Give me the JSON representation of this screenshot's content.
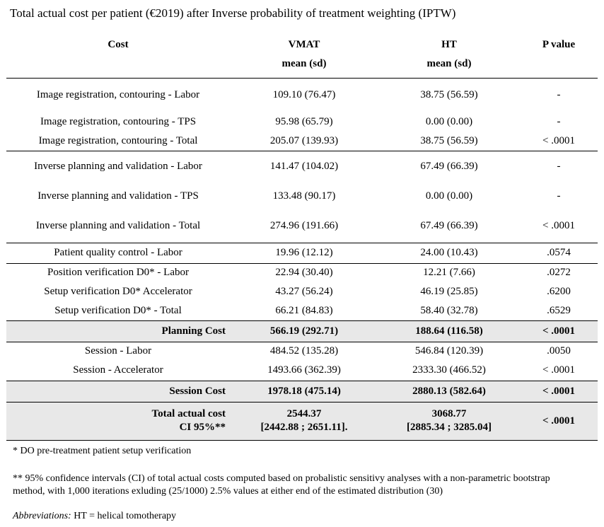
{
  "title": "Total actual cost per patient (€2019) after Inverse probability of treatment weighting (IPTW)",
  "headers": {
    "cost": "Cost",
    "vmat": "VMAT",
    "vmat_sub": "mean (sd)",
    "ht": "HT",
    "ht_sub": "mean (sd)",
    "p": "P value"
  },
  "rows": [
    {
      "cost": "Image registration, contouring - Labor",
      "vmat": "109.10 (76.47)",
      "ht": "38.75 (56.59)",
      "p": "-"
    },
    {
      "cost": "Image registration, contouring - TPS",
      "vmat": "95.98 (65.79)",
      "ht": "0.00 (0.00)",
      "p": "-"
    },
    {
      "cost": "Image registration, contouring - Total",
      "vmat": "205.07 (139.93)",
      "ht": "38.75 (56.59)",
      "p": "< .0001"
    },
    {
      "cost": "Inverse planning and validation - Labor",
      "vmat": "141.47 (104.02)",
      "ht": "67.49 (66.39)",
      "p": "-"
    },
    {
      "cost": "Inverse planning and validation - TPS",
      "vmat": "133.48 (90.17)",
      "ht": "0.00 (0.00)",
      "p": "-"
    },
    {
      "cost": "Inverse planning and validation - Total",
      "vmat": "274.96 (191.66)",
      "ht": "67.49 (66.39)",
      "p": "< .0001"
    },
    {
      "cost": "Patient quality control - Labor",
      "vmat": "19.96 (12.12)",
      "ht": "24.00 (10.43)",
      "p": ".0574"
    },
    {
      "cost": "Position verification D0* - Labor",
      "vmat": "22.94 (30.40)",
      "ht": "12.21 (7.66)",
      "p": ".0272"
    },
    {
      "cost": "Setup verification D0* Accelerator",
      "vmat": "43.27 (56.24)",
      "ht": "46.19 (25.85)",
      "p": ".6200"
    },
    {
      "cost": "Setup verification D0* - Total",
      "vmat": "66.21 (84.83)",
      "ht": "58.40 (32.78)",
      "p": ".6529"
    },
    {
      "cost": "Planning Cost",
      "vmat": "566.19 (292.71)",
      "ht": "188.64 (116.58)",
      "p": "< .0001"
    },
    {
      "cost": "Session - Labor",
      "vmat": "484.52 (135.28)",
      "ht": "546.84 (120.39)",
      "p": ".0050"
    },
    {
      "cost": "Session - Accelerator",
      "vmat": "1493.66 (362.39)",
      "ht": "2333.30 (466.52)",
      "p": "< .0001"
    },
    {
      "cost": "Session Cost",
      "vmat": "1978.18 (475.14)",
      "ht": "2880.13 (582.64)",
      "p": "< .0001"
    }
  ],
  "total": {
    "cost_line1": "Total actual cost",
    "cost_line2": "CI 95%**",
    "vmat_line1": "2544.37",
    "vmat_line2": "[2442.88 ; 2651.11].",
    "ht_line1": "3068.77",
    "ht_line2": "[2885.34 ; 3285.04]",
    "p": "< .0001"
  },
  "footnotes": {
    "f1": "* DO pre-treatment patient setup verification",
    "f2_line1": "** 95% confidence intervals (CI) of total actual costs computed based on probalistic sensitivy analyses with a non-parametric bootstrap",
    "f2_line2": "method, with 1,000 iterations exluding (25/1000) 2.5% values at either end of the estimated distribution (30)",
    "abbr_label": "Abbreviations:",
    "abbr_text": " HT = helical tomotherapy"
  }
}
